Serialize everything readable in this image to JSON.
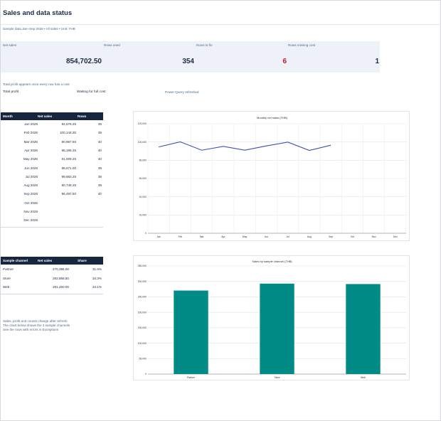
{
  "header": {
    "title": "Sales and data status",
    "subtitle": "Sample data Jan–Sep 2026 • All sales • Unit: THB"
  },
  "kpis": [
    {
      "label": "Net sales",
      "value": "854,702.50"
    },
    {
      "label": "Rows used",
      "value": "354"
    },
    {
      "label": "Rows to fix",
      "value": "6"
    },
    {
      "label": "Rows missing cost",
      "value": "1"
    }
  ],
  "profit": {
    "note": "Total profit appears once every row has a cost",
    "label": "Total profit",
    "status": "Waiting for full cost",
    "refresh": "Power Query refreshed"
  },
  "monthly_table": {
    "headers": [
      "Month",
      "Net sales",
      "Rows"
    ],
    "rows": [
      [
        "Jan 2026",
        "94,576.25",
        "39"
      ],
      [
        "Feb 2026",
        "100,144.25",
        "39"
      ],
      [
        "Mar 2026",
        "90,987.50",
        "40"
      ],
      [
        "Apr 2026",
        "95,185.25",
        "40"
      ],
      [
        "May 2026",
        "91,009.25",
        "40"
      ],
      [
        "Jun 2026",
        "95,671.00",
        "39"
      ],
      [
        "Jul 2026",
        "99,883.25",
        "39"
      ],
      [
        "Aug 2026",
        "90,748.25",
        "39"
      ],
      [
        "Sep 2026",
        "96,497.50",
        "40"
      ],
      [
        "Oct 2026",
        "",
        ""
      ],
      [
        "Nov 2026",
        "",
        ""
      ],
      [
        "Dec 2026",
        "",
        ""
      ]
    ]
  },
  "channel_table": {
    "headers": [
      "Sample channel",
      "Net sales",
      "Share"
    ],
    "rows": [
      [
        "Partner",
        "270,396.00",
        "31.6%"
      ],
      [
        "Store",
        "292,856.50",
        "34.3%"
      ],
      [
        "Web",
        "291,450.00",
        "34.1%"
      ]
    ]
  },
  "footnotes": [
    "Sales, profit and counts change after refresh",
    "The chart below shows the 3 sample channels",
    "See the rows with errors in Exceptions"
  ],
  "chart_data": [
    {
      "type": "line",
      "title": "Monthly net sales (THB)",
      "categories": [
        "Jan",
        "Feb",
        "Mar",
        "Apr",
        "May",
        "Jun",
        "Jul",
        "Aug",
        "Sep",
        "Oct",
        "Nov",
        "Dec"
      ],
      "values": [
        94576.25,
        100144.25,
        90987.5,
        95185.25,
        91009.25,
        95671,
        99883.25,
        90748.25,
        96497.5,
        null,
        null,
        null
      ],
      "ylim": [
        0,
        120000
      ],
      "yticks": [
        "0",
        "20,000",
        "40,000",
        "60,000",
        "80,000",
        "100,000",
        "120,000"
      ],
      "color": "#3d4fb5",
      "grid": true
    },
    {
      "type": "bar",
      "title": "Sales by sample channel (THB)",
      "categories": [
        "Partner",
        "Store",
        "Web"
      ],
      "values": [
        270396,
        292856.5,
        291450
      ],
      "ylim": [
        0,
        350000
      ],
      "yticks": [
        "0",
        "50,000",
        "100,000",
        "150,000",
        "200,000",
        "250,000",
        "300,000",
        "350,000"
      ],
      "color": "#008b87",
      "grid": true
    }
  ]
}
